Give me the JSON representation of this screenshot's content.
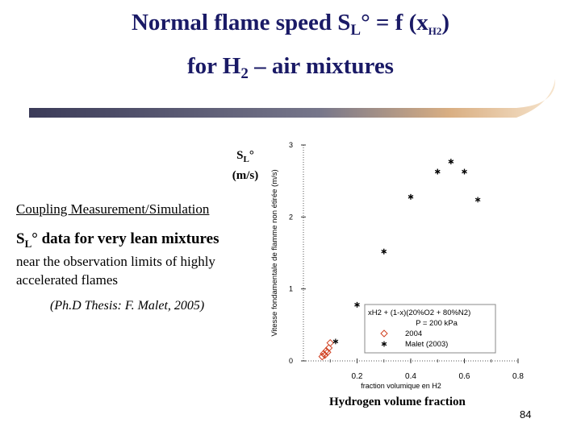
{
  "slide": {
    "title_line1": {
      "a": "Normal flame speed  S",
      "b": "L",
      "c": "° = f (x",
      "d": "H2",
      "e": ")"
    },
    "title_line2": {
      "a": "for H",
      "b": "2",
      "c": " – air mixtures"
    },
    "ylabel_ext": {
      "a": "S",
      "b": "L",
      "c": "°",
      "d": "(m/s)"
    },
    "coupling": "Coupling Measurement/Simulation",
    "lean": {
      "a": "S",
      "b": "L",
      "c": "° data for very lean mixtures"
    },
    "near_limits": "near the observation limits of highly accelerated flames",
    "thesis": "(Ph.D Thesis: F. Malet, 2005)",
    "xlabel_ext": "Hydrogen volume fraction",
    "page_number": "84",
    "colors": {
      "title": "#1a1a66",
      "swoosh_dark": "#2a2a4a",
      "swoosh_light": "#f6e2c8",
      "diamond": "#d04020"
    }
  },
  "chart_data": {
    "type": "scatter",
    "ylabel": "Vitesse fondamentale de flamme non étirée (m/s)",
    "xlabel": "fraction volumique en H2",
    "xlim": [
      0,
      0.8
    ],
    "ylim": [
      0,
      3
    ],
    "x_ticks": [
      "0.2",
      "0.4",
      "0.6",
      "0.8"
    ],
    "y_ticks": [
      "0",
      "1",
      "2",
      "3"
    ],
    "legend": {
      "position": "bottom-right",
      "header": "xH2 + (1-x)(20%O2 + 80%N2)",
      "pressure": "P = 200 kPa"
    },
    "series": [
      {
        "name": "2004",
        "marker": "diamond",
        "color": "#d04020",
        "x": [
          0.07,
          0.075,
          0.08,
          0.085,
          0.09,
          0.095,
          0.1
        ],
        "y": [
          0.06,
          0.1,
          0.08,
          0.14,
          0.12,
          0.18,
          0.25
        ]
      },
      {
        "name": "Malet (2003)",
        "marker": "asterisk",
        "color": "#000000",
        "x": [
          0.12,
          0.2,
          0.3,
          0.4,
          0.5,
          0.55,
          0.6,
          0.65,
          0.2,
          0.3,
          0.4,
          0.5,
          0.55,
          0.6
        ],
        "y": [
          0.27,
          0.78,
          1.52,
          2.28,
          2.63,
          2.77,
          2.63,
          2.24,
          0.78,
          1.52,
          2.28,
          2.63,
          2.77,
          2.63
        ]
      }
    ]
  }
}
